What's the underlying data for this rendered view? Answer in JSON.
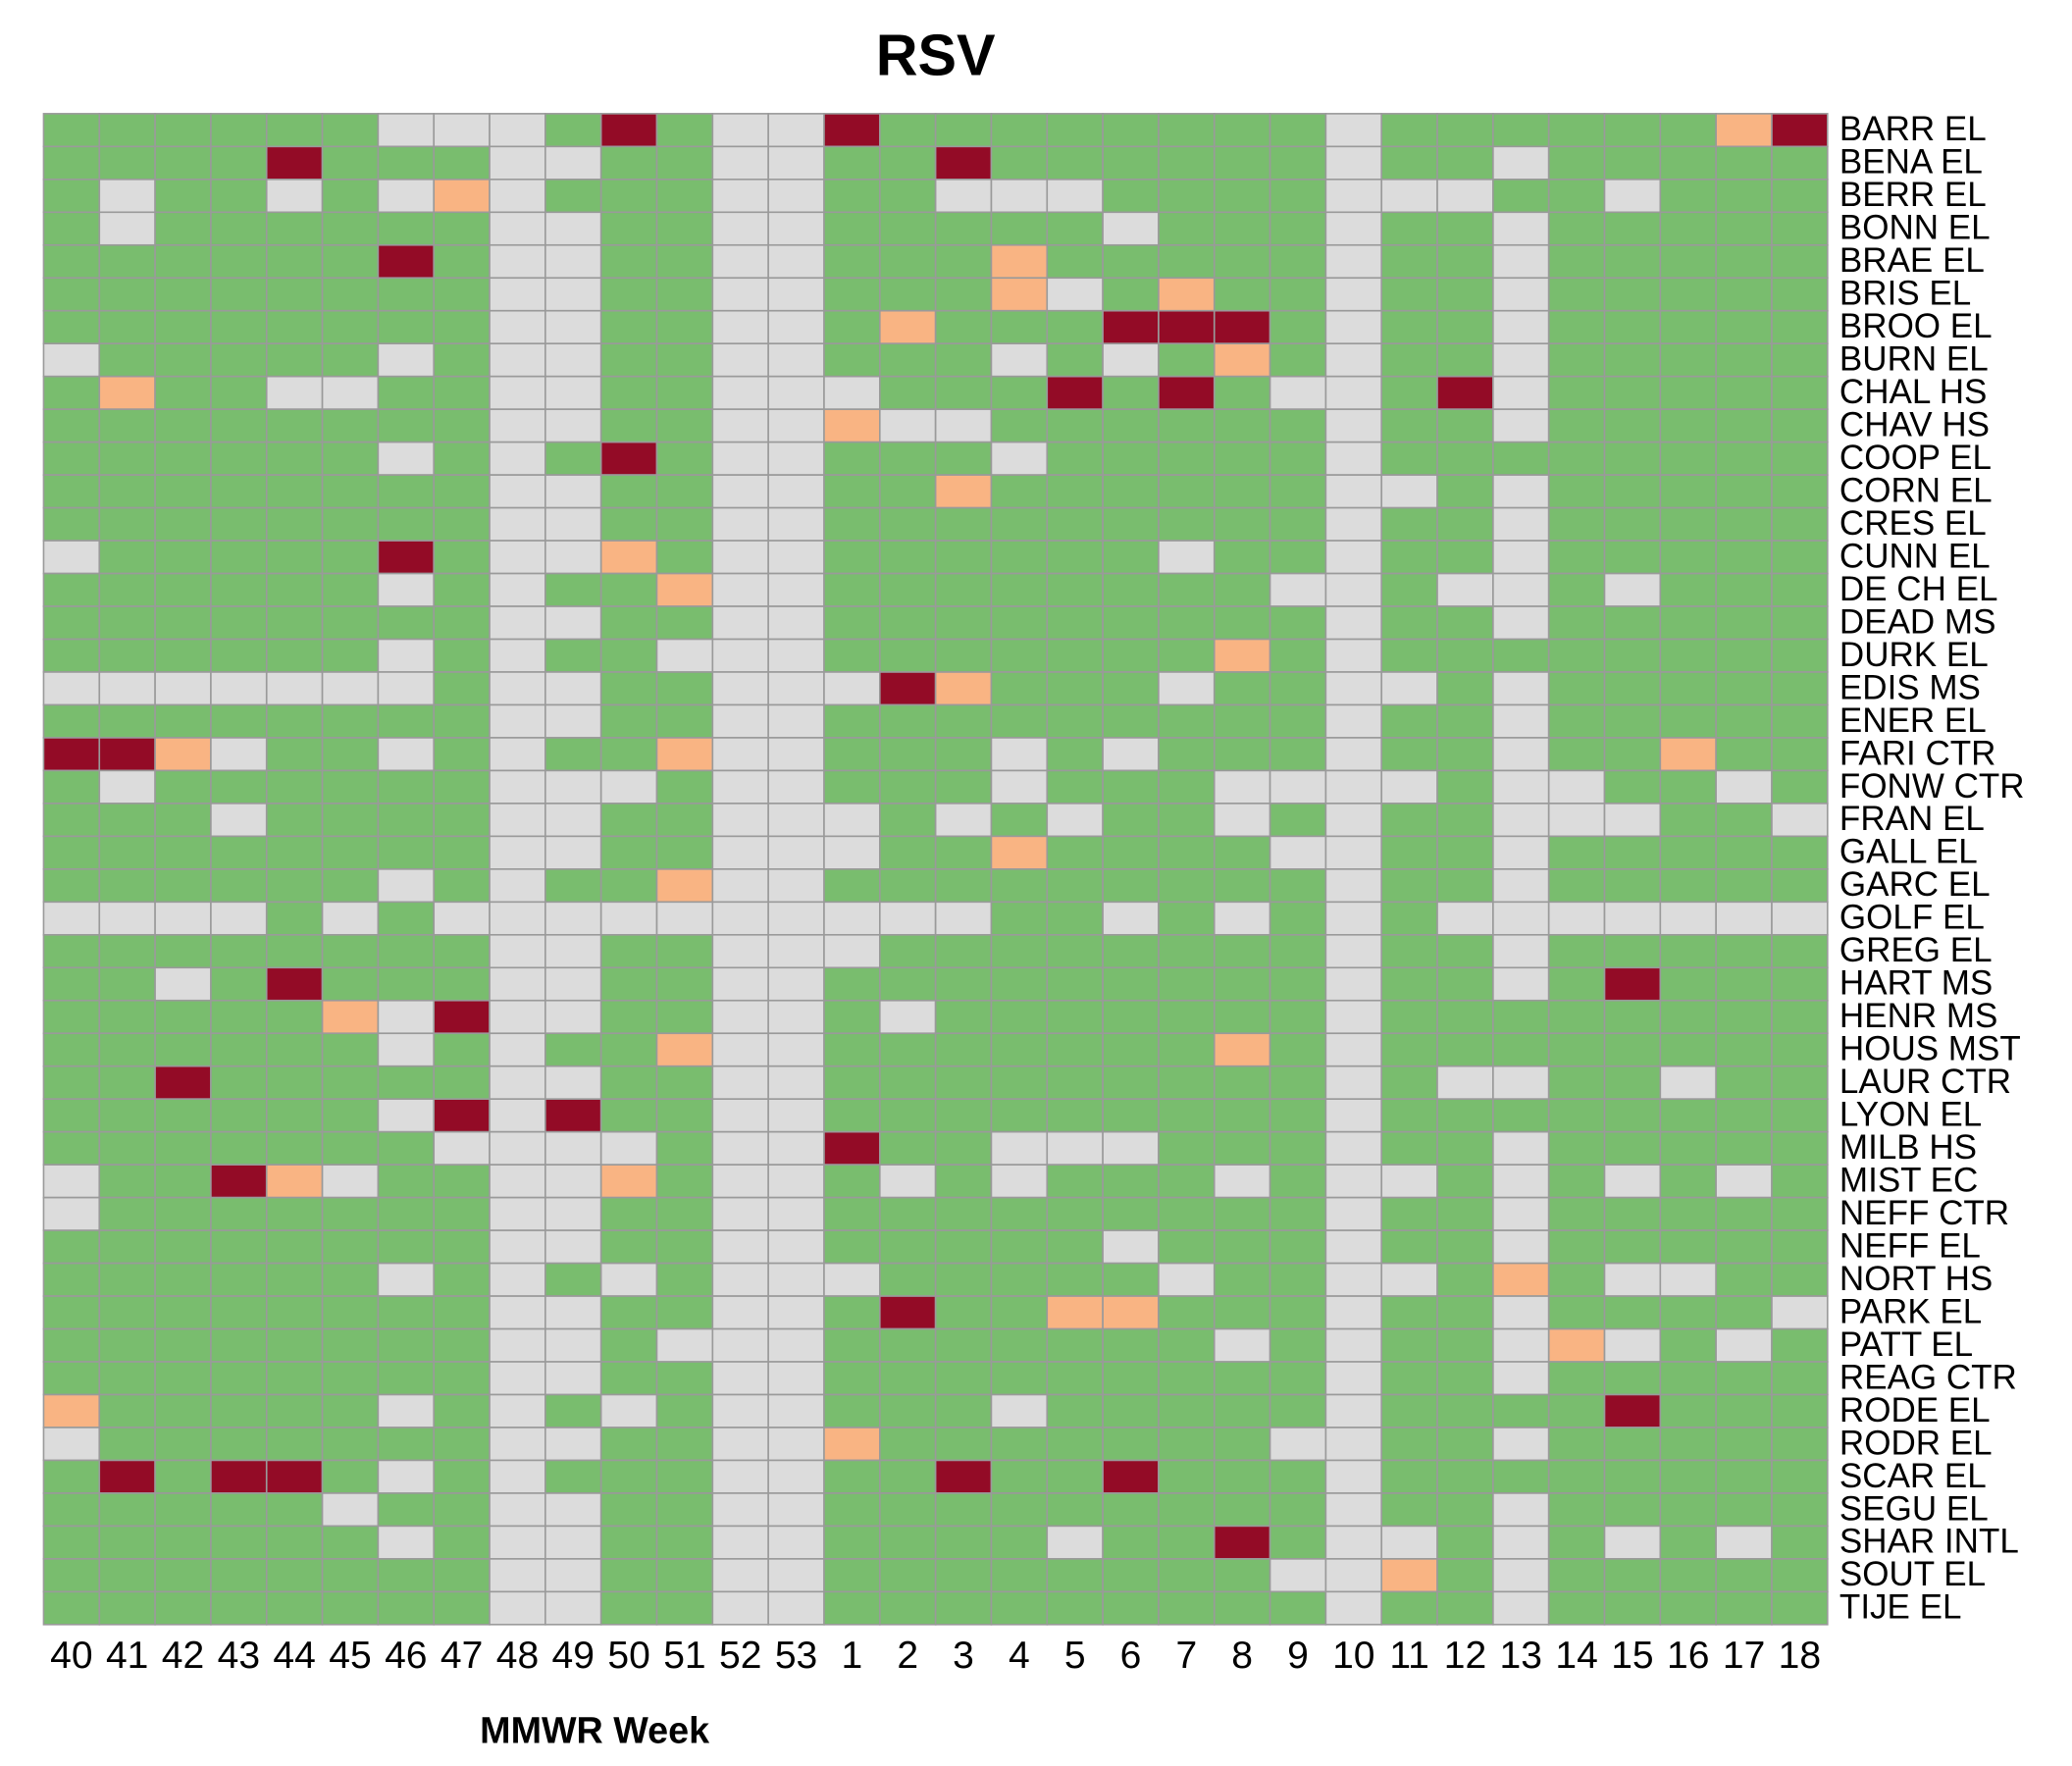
{
  "chart_data": {
    "type": "heatmap",
    "title": "RSV",
    "x_label": "MMWR Week",
    "columns": [
      "40",
      "41",
      "42",
      "43",
      "44",
      "45",
      "46",
      "47",
      "48",
      "49",
      "50",
      "51",
      "52",
      "53",
      "1",
      "2",
      "3",
      "4",
      "5",
      "6",
      "7",
      "8",
      "9",
      "10",
      "11",
      "12",
      "13",
      "14",
      "15",
      "16",
      "17",
      "18"
    ],
    "rows": [
      "BARR EL",
      "BENA EL",
      "BERR EL",
      "BONN EL",
      "BRAE EL",
      "BRIS EL",
      "BROO EL",
      "BURN EL",
      "CHAL HS",
      "CHAV HS",
      "COOP EL",
      "CORN EL",
      "CRES EL",
      "CUNN EL",
      "DE CH EL",
      "DEAD MS",
      "DURK EL",
      "EDIS MS",
      "ENER EL",
      "FARI CTR",
      "FONW CTR",
      "FRAN EL",
      "GALL EL",
      "GARC EL",
      "GOLF EL",
      "GREG EL",
      "HART MS",
      "HENR MS",
      "HOUS MST",
      "LAUR CTR",
      "LYON EL",
      "MILB HS",
      "MIST EC",
      "NEFF CTR",
      "NEFF EL",
      "NORT HS",
      "PARK EL",
      "PATT EL",
      "REAG CTR",
      "RODE EL",
      "RODR EL",
      "SCAR EL",
      "SEGU EL",
      "SHAR INTL",
      "SOUT EL",
      "TIJE EL"
    ],
    "colors": [
      "#dcdcdc",
      "#79bd6e",
      "#f9b483",
      "#930b26"
    ],
    "values": [
      [
        1,
        1,
        1,
        1,
        1,
        1,
        0,
        0,
        0,
        1,
        3,
        1,
        0,
        0,
        3,
        1,
        1,
        1,
        1,
        1,
        1,
        1,
        1,
        0,
        1,
        1,
        1,
        1,
        1,
        1,
        2,
        3
      ],
      [
        1,
        1,
        1,
        1,
        3,
        1,
        1,
        1,
        0,
        0,
        1,
        1,
        0,
        0,
        1,
        1,
        3,
        1,
        1,
        1,
        1,
        1,
        1,
        0,
        1,
        1,
        0,
        1,
        1,
        1,
        1,
        1
      ],
      [
        1,
        0,
        1,
        1,
        0,
        1,
        0,
        2,
        0,
        1,
        1,
        1,
        0,
        0,
        1,
        1,
        0,
        0,
        0,
        1,
        1,
        1,
        1,
        0,
        0,
        0,
        1,
        1,
        0,
        1,
        1,
        1
      ],
      [
        1,
        0,
        1,
        1,
        1,
        1,
        1,
        1,
        0,
        0,
        1,
        1,
        0,
        0,
        1,
        1,
        1,
        1,
        1,
        0,
        1,
        1,
        1,
        0,
        1,
        1,
        0,
        1,
        1,
        1,
        1,
        1
      ],
      [
        1,
        1,
        1,
        1,
        1,
        1,
        3,
        1,
        0,
        0,
        1,
        1,
        0,
        0,
        1,
        1,
        1,
        2,
        1,
        1,
        1,
        1,
        1,
        0,
        1,
        1,
        0,
        1,
        1,
        1,
        1,
        1
      ],
      [
        1,
        1,
        1,
        1,
        1,
        1,
        1,
        1,
        0,
        0,
        1,
        1,
        0,
        0,
        1,
        1,
        1,
        2,
        0,
        1,
        2,
        1,
        1,
        0,
        1,
        1,
        0,
        1,
        1,
        1,
        1,
        1
      ],
      [
        1,
        1,
        1,
        1,
        1,
        1,
        1,
        1,
        0,
        0,
        1,
        1,
        0,
        0,
        1,
        2,
        1,
        1,
        1,
        3,
        3,
        3,
        1,
        0,
        1,
        1,
        0,
        1,
        1,
        1,
        1,
        1
      ],
      [
        0,
        1,
        1,
        1,
        1,
        1,
        0,
        1,
        0,
        0,
        1,
        1,
        0,
        0,
        1,
        1,
        1,
        0,
        1,
        0,
        1,
        2,
        1,
        0,
        1,
        1,
        0,
        1,
        1,
        1,
        1,
        1
      ],
      [
        1,
        2,
        1,
        1,
        0,
        0,
        1,
        1,
        0,
        0,
        1,
        1,
        0,
        0,
        0,
        1,
        1,
        1,
        3,
        1,
        3,
        1,
        0,
        0,
        1,
        3,
        0,
        1,
        1,
        1,
        1,
        1
      ],
      [
        1,
        1,
        1,
        1,
        1,
        1,
        1,
        1,
        0,
        0,
        1,
        1,
        0,
        0,
        2,
        0,
        0,
        1,
        1,
        1,
        1,
        1,
        1,
        0,
        1,
        1,
        0,
        1,
        1,
        1,
        1,
        1
      ],
      [
        1,
        1,
        1,
        1,
        1,
        1,
        0,
        1,
        0,
        1,
        3,
        1,
        0,
        0,
        1,
        1,
        1,
        0,
        1,
        1,
        1,
        1,
        1,
        0,
        1,
        1,
        1,
        1,
        1,
        1,
        1,
        1
      ],
      [
        1,
        1,
        1,
        1,
        1,
        1,
        1,
        1,
        0,
        0,
        1,
        1,
        0,
        0,
        1,
        1,
        2,
        1,
        1,
        1,
        1,
        1,
        1,
        0,
        0,
        1,
        0,
        1,
        1,
        1,
        1,
        1
      ],
      [
        1,
        1,
        1,
        1,
        1,
        1,
        1,
        1,
        0,
        0,
        1,
        1,
        0,
        0,
        1,
        1,
        1,
        1,
        1,
        1,
        1,
        1,
        1,
        0,
        1,
        1,
        0,
        1,
        1,
        1,
        1,
        1
      ],
      [
        0,
        1,
        1,
        1,
        1,
        1,
        3,
        1,
        0,
        0,
        2,
        1,
        0,
        0,
        1,
        1,
        1,
        1,
        1,
        1,
        0,
        1,
        1,
        0,
        1,
        1,
        0,
        1,
        1,
        1,
        1,
        1
      ],
      [
        1,
        1,
        1,
        1,
        1,
        1,
        0,
        1,
        0,
        1,
        1,
        2,
        0,
        0,
        1,
        1,
        1,
        1,
        1,
        1,
        1,
        1,
        0,
        0,
        1,
        0,
        0,
        1,
        0,
        1,
        1,
        1
      ],
      [
        1,
        1,
        1,
        1,
        1,
        1,
        1,
        1,
        0,
        0,
        1,
        1,
        0,
        0,
        1,
        1,
        1,
        1,
        1,
        1,
        1,
        1,
        1,
        0,
        1,
        1,
        0,
        1,
        1,
        1,
        1,
        1
      ],
      [
        1,
        1,
        1,
        1,
        1,
        1,
        0,
        1,
        0,
        1,
        1,
        0,
        0,
        0,
        1,
        1,
        1,
        1,
        1,
        1,
        1,
        2,
        1,
        0,
        1,
        1,
        1,
        1,
        1,
        1,
        1,
        1
      ],
      [
        0,
        0,
        0,
        0,
        0,
        0,
        0,
        1,
        0,
        0,
        1,
        1,
        0,
        0,
        0,
        3,
        2,
        1,
        1,
        1,
        0,
        1,
        1,
        0,
        0,
        1,
        0,
        1,
        1,
        1,
        1,
        1
      ],
      [
        1,
        1,
        1,
        1,
        1,
        1,
        1,
        1,
        0,
        0,
        1,
        1,
        0,
        0,
        1,
        1,
        1,
        1,
        1,
        1,
        1,
        1,
        1,
        0,
        1,
        1,
        0,
        1,
        1,
        1,
        1,
        1
      ],
      [
        3,
        3,
        2,
        0,
        1,
        1,
        0,
        1,
        0,
        1,
        1,
        2,
        0,
        0,
        1,
        1,
        1,
        0,
        1,
        0,
        1,
        1,
        1,
        0,
        1,
        1,
        0,
        1,
        1,
        2,
        1,
        1
      ],
      [
        1,
        0,
        1,
        1,
        1,
        1,
        1,
        1,
        0,
        0,
        0,
        1,
        0,
        0,
        1,
        1,
        1,
        0,
        1,
        1,
        1,
        0,
        0,
        0,
        0,
        1,
        0,
        0,
        1,
        1,
        0,
        1
      ],
      [
        1,
        1,
        1,
        0,
        1,
        1,
        1,
        1,
        0,
        0,
        1,
        1,
        0,
        0,
        0,
        1,
        0,
        1,
        0,
        1,
        1,
        0,
        1,
        0,
        1,
        1,
        0,
        0,
        0,
        1,
        1,
        0
      ],
      [
        1,
        1,
        1,
        1,
        1,
        1,
        1,
        1,
        0,
        0,
        1,
        1,
        0,
        0,
        0,
        1,
        1,
        2,
        1,
        1,
        1,
        1,
        0,
        0,
        1,
        1,
        0,
        1,
        1,
        1,
        1,
        1
      ],
      [
        1,
        1,
        1,
        1,
        1,
        1,
        0,
        1,
        0,
        1,
        1,
        2,
        0,
        0,
        1,
        1,
        1,
        1,
        1,
        1,
        1,
        1,
        1,
        0,
        1,
        1,
        0,
        1,
        1,
        1,
        1,
        1
      ],
      [
        0,
        0,
        0,
        0,
        1,
        0,
        1,
        0,
        0,
        0,
        0,
        0,
        0,
        0,
        0,
        0,
        0,
        1,
        1,
        0,
        1,
        0,
        1,
        0,
        1,
        0,
        0,
        0,
        0,
        0,
        0,
        0
      ],
      [
        1,
        1,
        1,
        1,
        1,
        1,
        1,
        1,
        0,
        0,
        1,
        1,
        0,
        0,
        0,
        1,
        1,
        1,
        1,
        1,
        1,
        1,
        1,
        0,
        1,
        1,
        0,
        1,
        1,
        1,
        1,
        1
      ],
      [
        1,
        1,
        0,
        1,
        3,
        1,
        1,
        1,
        0,
        0,
        1,
        1,
        0,
        0,
        1,
        1,
        1,
        1,
        1,
        1,
        1,
        1,
        1,
        0,
        1,
        1,
        0,
        1,
        3,
        1,
        1,
        1
      ],
      [
        1,
        1,
        1,
        1,
        1,
        2,
        0,
        3,
        0,
        0,
        1,
        1,
        0,
        0,
        1,
        0,
        1,
        1,
        1,
        1,
        1,
        1,
        1,
        0,
        1,
        1,
        1,
        1,
        1,
        1,
        1,
        1
      ],
      [
        1,
        1,
        1,
        1,
        1,
        1,
        0,
        1,
        0,
        1,
        1,
        2,
        0,
        0,
        1,
        1,
        1,
        1,
        1,
        1,
        1,
        2,
        1,
        0,
        1,
        1,
        1,
        1,
        1,
        1,
        1,
        1
      ],
      [
        1,
        1,
        3,
        1,
        1,
        1,
        1,
        1,
        0,
        0,
        1,
        1,
        0,
        0,
        1,
        1,
        1,
        1,
        1,
        1,
        1,
        1,
        1,
        0,
        1,
        0,
        0,
        1,
        1,
        0,
        1,
        1
      ],
      [
        1,
        1,
        1,
        1,
        1,
        1,
        0,
        3,
        0,
        3,
        1,
        1,
        0,
        0,
        1,
        1,
        1,
        1,
        1,
        1,
        1,
        1,
        1,
        0,
        1,
        1,
        1,
        1,
        1,
        1,
        1,
        1
      ],
      [
        1,
        1,
        1,
        1,
        1,
        1,
        1,
        0,
        0,
        0,
        0,
        1,
        0,
        0,
        3,
        1,
        1,
        0,
        0,
        0,
        1,
        1,
        1,
        0,
        1,
        1,
        0,
        1,
        1,
        1,
        1,
        1
      ],
      [
        0,
        1,
        1,
        3,
        2,
        0,
        1,
        1,
        0,
        0,
        2,
        1,
        0,
        0,
        1,
        0,
        1,
        0,
        1,
        1,
        1,
        0,
        1,
        0,
        0,
        1,
        0,
        1,
        0,
        1,
        0,
        1
      ],
      [
        0,
        1,
        1,
        1,
        1,
        1,
        1,
        1,
        0,
        0,
        1,
        1,
        0,
        0,
        1,
        1,
        1,
        1,
        1,
        1,
        1,
        1,
        1,
        0,
        1,
        1,
        0,
        1,
        1,
        1,
        1,
        1
      ],
      [
        1,
        1,
        1,
        1,
        1,
        1,
        1,
        1,
        0,
        0,
        1,
        1,
        0,
        0,
        1,
        1,
        1,
        1,
        1,
        0,
        1,
        1,
        1,
        0,
        1,
        1,
        0,
        1,
        1,
        1,
        1,
        1
      ],
      [
        1,
        1,
        1,
        1,
        1,
        1,
        0,
        1,
        0,
        1,
        0,
        1,
        0,
        0,
        0,
        1,
        1,
        1,
        1,
        1,
        0,
        1,
        1,
        0,
        0,
        1,
        2,
        1,
        0,
        0,
        1,
        1
      ],
      [
        1,
        1,
        1,
        1,
        1,
        1,
        1,
        1,
        0,
        0,
        1,
        1,
        0,
        0,
        1,
        3,
        1,
        1,
        2,
        2,
        1,
        1,
        1,
        0,
        1,
        1,
        0,
        1,
        1,
        1,
        1,
        0
      ],
      [
        1,
        1,
        1,
        1,
        1,
        1,
        1,
        1,
        0,
        0,
        1,
        0,
        0,
        0,
        1,
        1,
        1,
        1,
        1,
        1,
        1,
        0,
        1,
        0,
        1,
        1,
        0,
        2,
        0,
        1,
        0,
        1
      ],
      [
        1,
        1,
        1,
        1,
        1,
        1,
        1,
        1,
        0,
        0,
        1,
        1,
        0,
        0,
        1,
        1,
        1,
        1,
        1,
        1,
        1,
        1,
        1,
        0,
        1,
        1,
        0,
        1,
        1,
        1,
        1,
        1
      ],
      [
        2,
        1,
        1,
        1,
        1,
        1,
        0,
        1,
        0,
        1,
        0,
        1,
        0,
        0,
        1,
        1,
        1,
        0,
        1,
        1,
        1,
        1,
        1,
        0,
        1,
        1,
        1,
        1,
        3,
        1,
        1,
        1
      ],
      [
        0,
        1,
        1,
        1,
        1,
        1,
        1,
        1,
        0,
        0,
        1,
        1,
        0,
        0,
        2,
        1,
        1,
        1,
        1,
        1,
        1,
        1,
        0,
        0,
        1,
        1,
        0,
        1,
        1,
        1,
        1,
        1
      ],
      [
        1,
        3,
        1,
        3,
        3,
        1,
        0,
        1,
        0,
        1,
        1,
        1,
        0,
        0,
        1,
        1,
        3,
        1,
        1,
        3,
        1,
        1,
        1,
        0,
        1,
        1,
        1,
        1,
        1,
        1,
        1,
        1
      ],
      [
        1,
        1,
        1,
        1,
        1,
        0,
        1,
        1,
        0,
        0,
        1,
        1,
        0,
        0,
        1,
        1,
        1,
        1,
        1,
        1,
        1,
        1,
        1,
        0,
        1,
        1,
        0,
        1,
        1,
        1,
        1,
        1
      ],
      [
        1,
        1,
        1,
        1,
        1,
        1,
        0,
        1,
        0,
        0,
        1,
        1,
        0,
        0,
        1,
        1,
        1,
        1,
        0,
        1,
        1,
        3,
        1,
        0,
        0,
        1,
        0,
        1,
        0,
        1,
        0,
        1
      ],
      [
        1,
        1,
        1,
        1,
        1,
        1,
        1,
        1,
        0,
        0,
        1,
        1,
        0,
        0,
        1,
        1,
        1,
        1,
        1,
        1,
        1,
        1,
        0,
        0,
        2,
        1,
        0,
        1,
        1,
        1,
        1,
        1
      ],
      [
        1,
        1,
        1,
        1,
        1,
        1,
        1,
        1,
        0,
        0,
        1,
        1,
        0,
        0,
        1,
        1,
        1,
        1,
        1,
        1,
        1,
        1,
        1,
        0,
        1,
        1,
        0,
        1,
        1,
        1,
        1,
        1
      ]
    ]
  }
}
